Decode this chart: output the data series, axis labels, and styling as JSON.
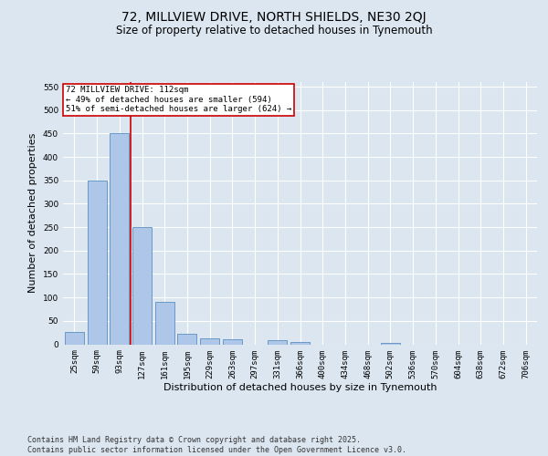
{
  "title1": "72, MILLVIEW DRIVE, NORTH SHIELDS, NE30 2QJ",
  "title2": "Size of property relative to detached houses in Tynemouth",
  "xlabel": "Distribution of detached houses by size in Tynemouth",
  "ylabel": "Number of detached properties",
  "categories": [
    "25sqm",
    "59sqm",
    "93sqm",
    "127sqm",
    "161sqm",
    "195sqm",
    "229sqm",
    "263sqm",
    "297sqm",
    "331sqm",
    "366sqm",
    "400sqm",
    "434sqm",
    "468sqm",
    "502sqm",
    "536sqm",
    "570sqm",
    "604sqm",
    "638sqm",
    "672sqm",
    "706sqm"
  ],
  "values": [
    27,
    350,
    450,
    250,
    90,
    22,
    13,
    10,
    0,
    8,
    5,
    0,
    0,
    0,
    2,
    0,
    0,
    0,
    0,
    0,
    0
  ],
  "bar_color": "#aec6e8",
  "bar_edge_color": "#5a8fc0",
  "red_line_x": 2.5,
  "annotation_text": "72 MILLVIEW DRIVE: 112sqm\n← 49% of detached houses are smaller (594)\n51% of semi-detached houses are larger (624) →",
  "annotation_box_color": "#ffffff",
  "annotation_border_color": "#cc0000",
  "ylim": [
    0,
    560
  ],
  "yticks": [
    0,
    50,
    100,
    150,
    200,
    250,
    300,
    350,
    400,
    450,
    500,
    550
  ],
  "background_color": "#dce6f0",
  "grid_color": "#ffffff",
  "fig_background_color": "#dce6f0",
  "footer1": "Contains HM Land Registry data © Crown copyright and database right 2025.",
  "footer2": "Contains public sector information licensed under the Open Government Licence v3.0.",
  "title1_fontsize": 10,
  "title2_fontsize": 8.5,
  "tick_fontsize": 6.5,
  "ylabel_fontsize": 8,
  "xlabel_fontsize": 8,
  "footer_fontsize": 6,
  "annotation_fontsize": 6.5
}
